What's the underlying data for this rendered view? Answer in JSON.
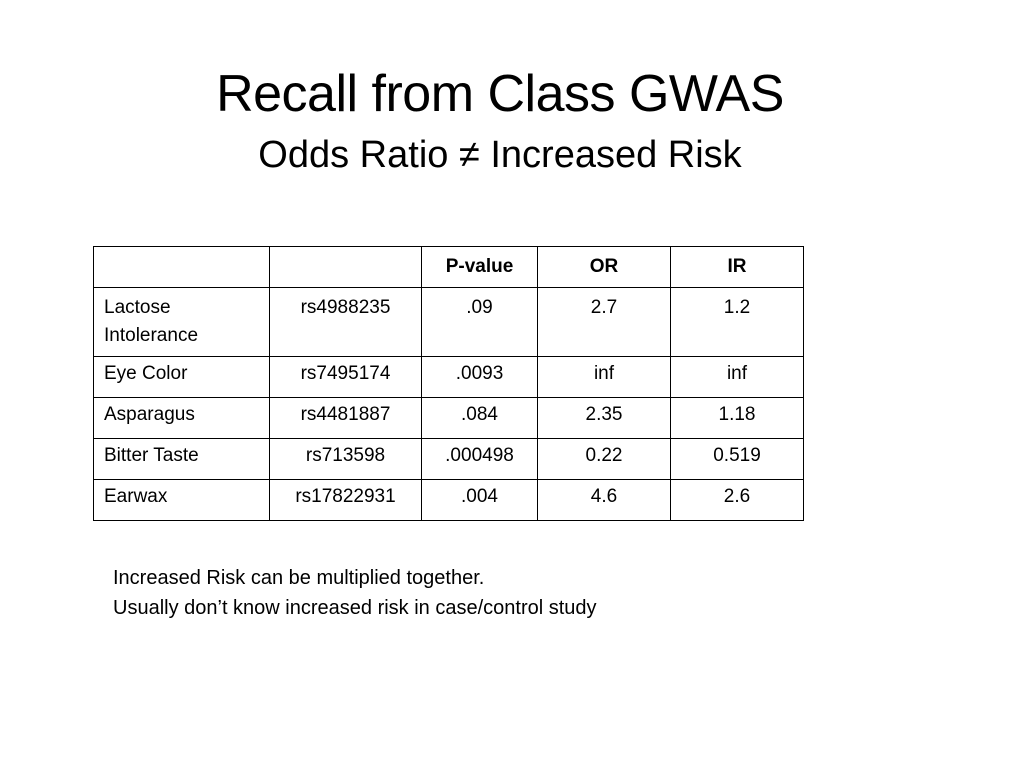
{
  "slide": {
    "title": "Recall from Class GWAS",
    "subtitle": "Odds Ratio ≠ Increased Risk"
  },
  "table": {
    "headers": [
      "",
      "",
      "P-value",
      "OR",
      "IR"
    ],
    "rows": [
      {
        "trait": "Lactose Intolerance",
        "snp": "rs4988235",
        "pvalue": ".09",
        "or": "2.7",
        "ir": "1.2"
      },
      {
        "trait": "Eye Color",
        "snp": "rs7495174",
        "pvalue": ".0093",
        "or": "inf",
        "ir": "inf"
      },
      {
        "trait": "Asparagus",
        "snp": "rs4481887",
        "pvalue": ".084",
        "or": "2.35",
        "ir": "1.18"
      },
      {
        "trait": "Bitter Taste",
        "snp": "rs713598",
        "pvalue": ".000498",
        "or": "0.22",
        "ir": "0.519"
      },
      {
        "trait": "Earwax",
        "snp": "rs17822931",
        "pvalue": ".004",
        "or": "4.6",
        "ir": "2.6"
      }
    ]
  },
  "notes": [
    "Increased Risk can be multiplied together.",
    "Usually don’t know increased risk in case/control study"
  ]
}
